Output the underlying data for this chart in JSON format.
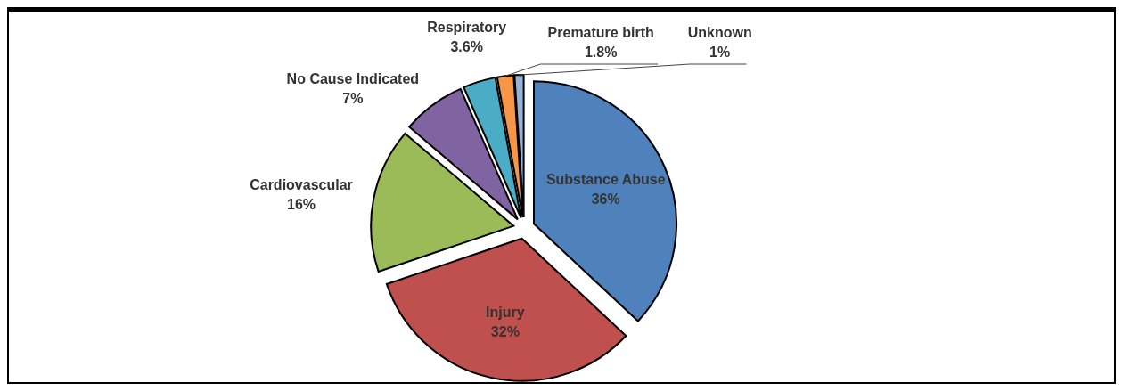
{
  "chart_data": {
    "type": "pie",
    "categories": [
      "Substance Abuse",
      "Injury",
      "Cardiovascular",
      "No Cause Indicated",
      "Respiratory",
      "Premature birth",
      "Unknown"
    ],
    "values": [
      36,
      32,
      16,
      7,
      3.6,
      1.8,
      1
    ],
    "colors": [
      "#4f81bd",
      "#c0504d",
      "#9bbb59",
      "#8064a2",
      "#4bacc6",
      "#f79646",
      "#95b3d7"
    ],
    "value_labels": [
      "36%",
      "32%",
      "16%",
      "7%",
      "3.6%",
      "1.8%",
      "1%"
    ]
  }
}
